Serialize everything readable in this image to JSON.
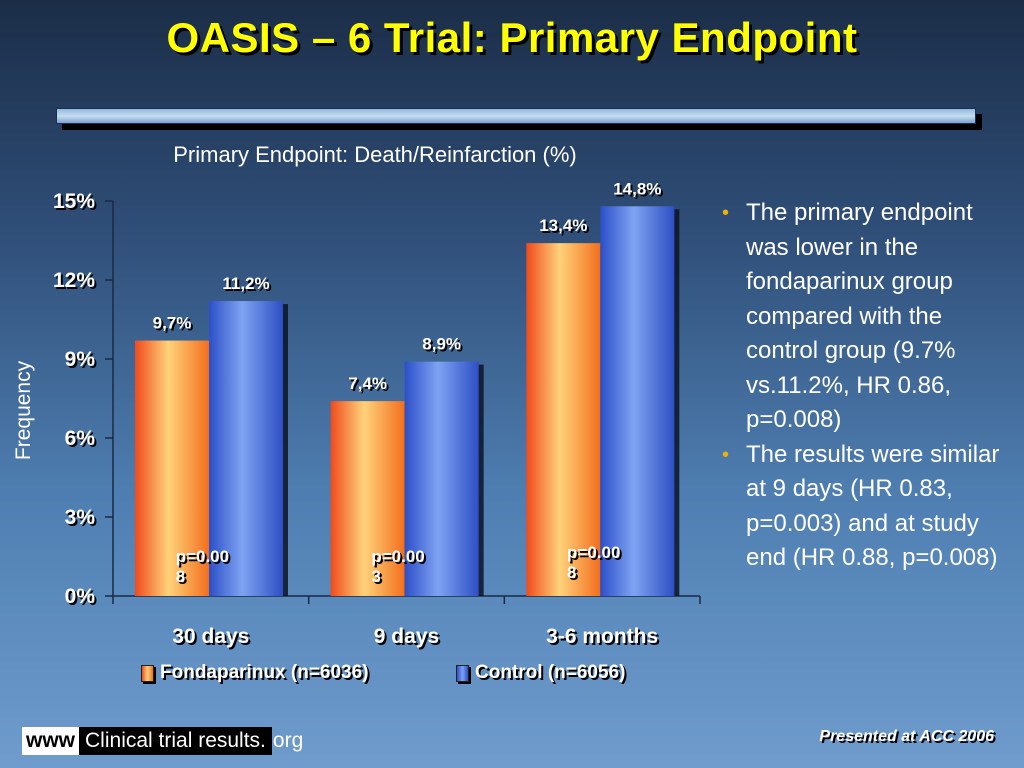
{
  "slide_title": "OASIS – 6 Trial: Primary Endpoint",
  "bullets": [
    "The primary endpoint was lower in the fondaparinux group compared with the control group (9.7% vs.11.2%, HR 0.86, p=0.008)",
    "The results were similar at 9 days (HR 0.83, p=0.003) and at study end (HR 0.88, p=0.008)"
  ],
  "footer": {
    "brand_prefix": "www",
    "brand_middle": "Clinical trial results.",
    "brand_suffix": "org",
    "note": "Presented at ACC 2006"
  },
  "colors": {
    "series_1": "#f7812a",
    "series_2": "#3b63d8",
    "title": "#ffff00",
    "bullet_marker": "#f0b000"
  },
  "chart_data": {
    "type": "bar",
    "title": "Primary Endpoint: Death/Reinfarction (%)",
    "ylabel": "Frequency",
    "xlabel": "",
    "ylim": [
      0,
      15
    ],
    "yticks": [
      0,
      3,
      6,
      9,
      12,
      15
    ],
    "ytick_labels": [
      "0%",
      "3%",
      "6%",
      "9%",
      "12%",
      "15%"
    ],
    "categories": [
      "30 days",
      "9 days",
      "3-6 months"
    ],
    "series": [
      {
        "name": "Fondaparinux (n=6036)",
        "values": [
          9.7,
          7.4,
          13.4
        ],
        "labels": [
          "9,7%",
          "7,4%",
          "13,4%"
        ]
      },
      {
        "name": "Control (n=6056)",
        "values": [
          11.2,
          8.9,
          14.8
        ],
        "labels": [
          "11,2%",
          "8,9%",
          "14,8%"
        ]
      }
    ],
    "annotations": [
      {
        "category": "30 days",
        "lines": [
          "p=0.00",
          "8"
        ]
      },
      {
        "category": "9 days",
        "lines": [
          "p=0.00",
          "3"
        ]
      },
      {
        "category": "3-6 months",
        "lines": [
          "p=0.00",
          "8"
        ]
      }
    ],
    "legend": "bottom",
    "grid": false
  }
}
